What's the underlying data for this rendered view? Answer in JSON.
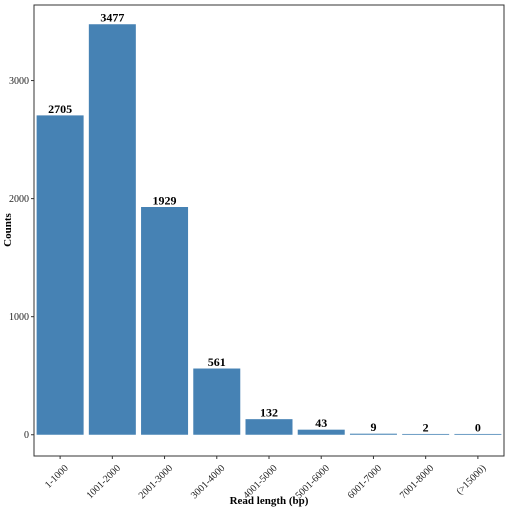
{
  "chart_data": {
    "type": "bar",
    "categories": [
      "1-1000",
      "1001-2000",
      "2001-3000",
      "3001-4000",
      "4001-5000",
      "5001-6000",
      "6001-7000",
      "7001-8000",
      "(>15000)"
    ],
    "values": [
      2705,
      3477,
      1929,
      561,
      132,
      43,
      9,
      2,
      0
    ],
    "data_labels": [
      "2705",
      "3477",
      "1929",
      "561",
      "132",
      "43",
      "9",
      "2",
      "0"
    ],
    "title": "",
    "xlabel": "Read length (bp)",
    "ylabel": "Counts",
    "ylim": [
      -180,
      3640
    ],
    "yticks": [
      0,
      1000,
      2000,
      3000
    ],
    "ytick_labels": [
      "0",
      "1000",
      "2000",
      "3000"
    ],
    "grid": false,
    "legend": "none",
    "bar_color": "#4682b4",
    "text_color": "#000000"
  }
}
